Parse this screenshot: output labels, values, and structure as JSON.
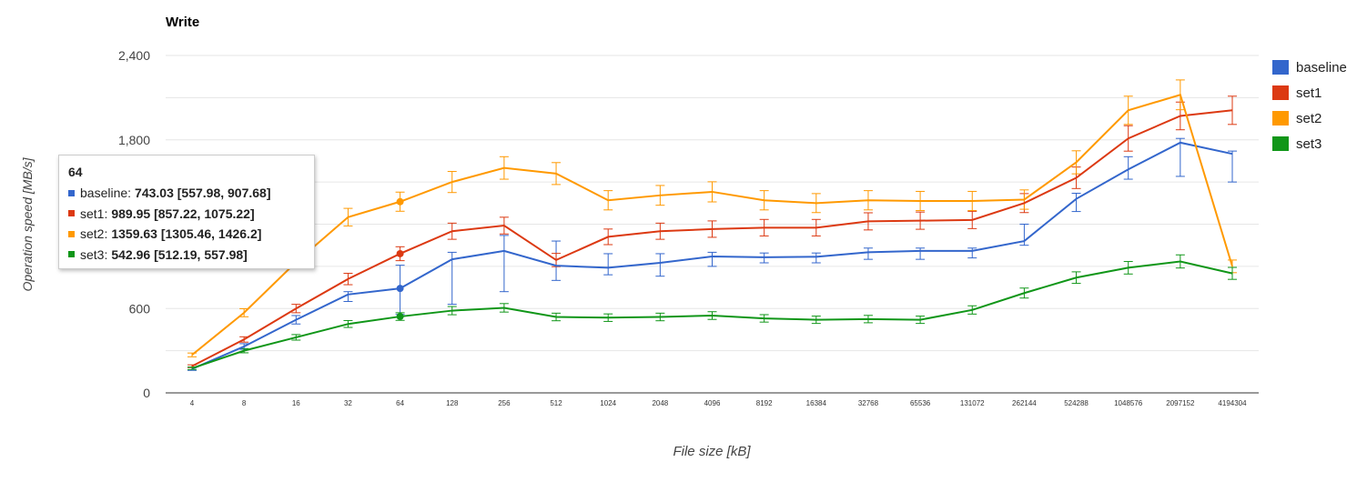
{
  "chart_data": {
    "type": "line",
    "title": "Write",
    "xlabel": "File size [kB]",
    "ylabel": "Operation speed [MB/s]",
    "ylim": [
      0,
      2400
    ],
    "yticks": [
      "0",
      "600",
      "1,800",
      "2,400"
    ],
    "grid": true,
    "legend_position": "right",
    "categories": [
      "4",
      "8",
      "16",
      "32",
      "64",
      "128",
      "256",
      "512",
      "1024",
      "2048",
      "4096",
      "8192",
      "16384",
      "32768",
      "65536",
      "131072",
      "262144",
      "524288",
      "1048576",
      "2097152",
      "4194304"
    ],
    "series": [
      {
        "name": "baseline",
        "color": "#3366cc",
        "values": [
          170,
          330,
          520,
          700,
          743,
          950,
          1010,
          905,
          890,
          925,
          970,
          965,
          968,
          1000,
          1010,
          1010,
          1080,
          1380,
          1590,
          1780,
          1700
        ],
        "err_low": [
          160,
          310,
          490,
          650,
          558,
          630,
          720,
          800,
          840,
          830,
          900,
          925,
          925,
          950,
          950,
          960,
          1050,
          1290,
          1520,
          1540,
          1500
        ],
        "err_high": [
          180,
          350,
          550,
          720,
          908,
          1000,
          1120,
          1080,
          990,
          990,
          1000,
          995,
          995,
          1030,
          1030,
          1030,
          1200,
          1420,
          1680,
          1810,
          1720
        ]
      },
      {
        "name": "set1",
        "color": "#dc3912",
        "values": [
          190,
          380,
          600,
          810,
          990,
          1150,
          1190,
          945,
          1110,
          1150,
          1165,
          1175,
          1175,
          1220,
          1225,
          1230,
          1350,
          1530,
          1810,
          1970,
          2010
        ]
      },
      {
        "name": "set2",
        "color": "#ff9900",
        "values": [
          270,
          570,
          930,
          1250,
          1360,
          1500,
          1600,
          1560,
          1370,
          1405,
          1430,
          1370,
          1350,
          1370,
          1365,
          1365,
          1375,
          1640,
          2010,
          2120,
          900
        ]
      },
      {
        "name": "set3",
        "color": "#109618",
        "values": [
          175,
          300,
          395,
          490,
          543,
          585,
          605,
          540,
          535,
          540,
          550,
          530,
          520,
          525,
          520,
          590,
          710,
          820,
          890,
          935,
          850
        ]
      }
    ]
  },
  "tooltip": {
    "header": "64",
    "rows": [
      {
        "name": "baseline",
        "value": "743.03 [557.98, 907.68]",
        "color": "#3366cc"
      },
      {
        "name": "set1",
        "value": "989.95 [857.22, 1075.22]",
        "color": "#dc3912"
      },
      {
        "name": "set2",
        "value": "1359.63 [1305.46, 1426.2]",
        "color": "#ff9900"
      },
      {
        "name": "set3",
        "value": "542.96 [512.19, 557.98]",
        "color": "#109618"
      }
    ]
  }
}
